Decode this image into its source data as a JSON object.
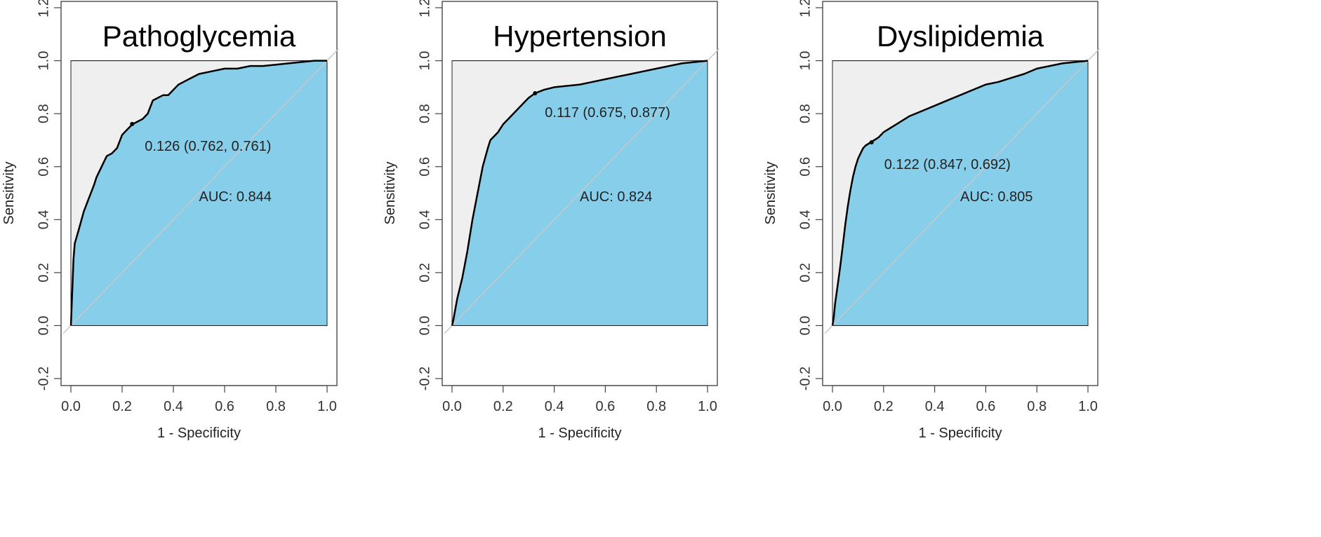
{
  "colors": {
    "fill": "#87ceeb",
    "background": "#efefef",
    "diagonal": "#c8c8c8",
    "curve": "#000000",
    "frame": "#555555"
  },
  "chart_data": [
    {
      "type": "line",
      "title": "Pathoglycemia",
      "xlabel": "1 - Specificity",
      "ylabel": "Sensitivity",
      "xlim": [
        0,
        1
      ],
      "ylim": [
        -0.2,
        1.2
      ],
      "xticks": [
        "0.0",
        "0.2",
        "0.4",
        "0.6",
        "0.8",
        "1.0"
      ],
      "yticks": [
        "-0.2",
        "0.0",
        "0.2",
        "0.4",
        "0.6",
        "0.8",
        "1.0",
        "1.2"
      ],
      "series": [
        {
          "x": [
            0,
            0.005,
            0.01,
            0.015,
            0.03,
            0.05,
            0.07,
            0.09,
            0.1,
            0.12,
            0.13,
            0.14,
            0.16,
            0.18,
            0.2,
            0.22,
            0.24,
            0.26,
            0.28,
            0.3,
            0.32,
            0.34,
            0.36,
            0.38,
            0.4,
            0.42,
            0.44,
            0.46,
            0.5,
            0.55,
            0.6,
            0.65,
            0.7,
            0.75,
            0.8,
            0.85,
            0.9,
            0.95,
            1.0
          ],
          "y": [
            0,
            0.12,
            0.25,
            0.31,
            0.36,
            0.43,
            0.48,
            0.53,
            0.56,
            0.6,
            0.62,
            0.64,
            0.65,
            0.67,
            0.72,
            0.74,
            0.76,
            0.77,
            0.78,
            0.8,
            0.85,
            0.86,
            0.87,
            0.87,
            0.89,
            0.91,
            0.92,
            0.93,
            0.95,
            0.96,
            0.97,
            0.97,
            0.98,
            0.98,
            0.985,
            0.99,
            0.995,
            1.0,
            1.0
          ]
        }
      ],
      "threshold_point": {
        "x": 0.239,
        "y": 0.761
      },
      "annotations": [
        "0.126 (0.762, 0.761)",
        "AUC: 0.844"
      ]
    },
    {
      "type": "line",
      "title": "Hypertension",
      "xlabel": "1 - Specificity",
      "ylabel": "Sensitivity",
      "xlim": [
        0,
        1
      ],
      "ylim": [
        -0.2,
        1.2
      ],
      "xticks": [
        "0.0",
        "0.2",
        "0.4",
        "0.6",
        "0.8",
        "1.0"
      ],
      "yticks": [
        "-0.2",
        "0.0",
        "0.2",
        "0.4",
        "0.6",
        "0.8",
        "1.0",
        "1.2"
      ],
      "series": [
        {
          "x": [
            0,
            0.005,
            0.02,
            0.04,
            0.06,
            0.08,
            0.1,
            0.12,
            0.14,
            0.15,
            0.18,
            0.2,
            0.22,
            0.25,
            0.28,
            0.3,
            0.325,
            0.36,
            0.4,
            0.45,
            0.5,
            0.55,
            0.6,
            0.65,
            0.7,
            0.75,
            0.8,
            0.85,
            0.9,
            0.95,
            1.0
          ],
          "y": [
            0,
            0.02,
            0.1,
            0.18,
            0.28,
            0.4,
            0.5,
            0.6,
            0.67,
            0.7,
            0.73,
            0.76,
            0.78,
            0.81,
            0.84,
            0.86,
            0.877,
            0.89,
            0.9,
            0.905,
            0.91,
            0.92,
            0.93,
            0.94,
            0.95,
            0.96,
            0.97,
            0.98,
            0.99,
            0.995,
            1.0
          ]
        }
      ],
      "threshold_point": {
        "x": 0.325,
        "y": 0.877
      },
      "annotations": [
        "0.117 (0.675, 0.877)",
        "AUC: 0.824"
      ]
    },
    {
      "type": "line",
      "title": "Dyslipidemia",
      "xlabel": "1 - Specificity",
      "ylabel": "Sensitivity",
      "xlim": [
        0,
        1
      ],
      "ylim": [
        -0.2,
        1.2
      ],
      "xticks": [
        "0.0",
        "0.2",
        "0.4",
        "0.6",
        "0.8",
        "1.0"
      ],
      "yticks": [
        "-0.2",
        "0.0",
        "0.2",
        "0.4",
        "0.6",
        "0.8",
        "1.0",
        "1.2"
      ],
      "series": [
        {
          "x": [
            0,
            0.005,
            0.01,
            0.02,
            0.03,
            0.04,
            0.05,
            0.06,
            0.07,
            0.08,
            0.09,
            0.1,
            0.11,
            0.12,
            0.13,
            0.15,
            0.18,
            0.2,
            0.25,
            0.3,
            0.35,
            0.4,
            0.45,
            0.5,
            0.55,
            0.6,
            0.65,
            0.7,
            0.75,
            0.8,
            0.85,
            0.9,
            0.95,
            1.0
          ],
          "y": [
            0,
            0.03,
            0.08,
            0.15,
            0.22,
            0.3,
            0.38,
            0.45,
            0.51,
            0.56,
            0.6,
            0.63,
            0.65,
            0.67,
            0.68,
            0.692,
            0.71,
            0.73,
            0.76,
            0.79,
            0.81,
            0.83,
            0.85,
            0.87,
            0.89,
            0.91,
            0.92,
            0.935,
            0.95,
            0.97,
            0.98,
            0.99,
            0.995,
            1.0
          ]
        }
      ],
      "threshold_point": {
        "x": 0.153,
        "y": 0.692
      },
      "annotations": [
        "0.122 (0.847, 0.692)",
        "AUC: 0.805"
      ]
    }
  ]
}
